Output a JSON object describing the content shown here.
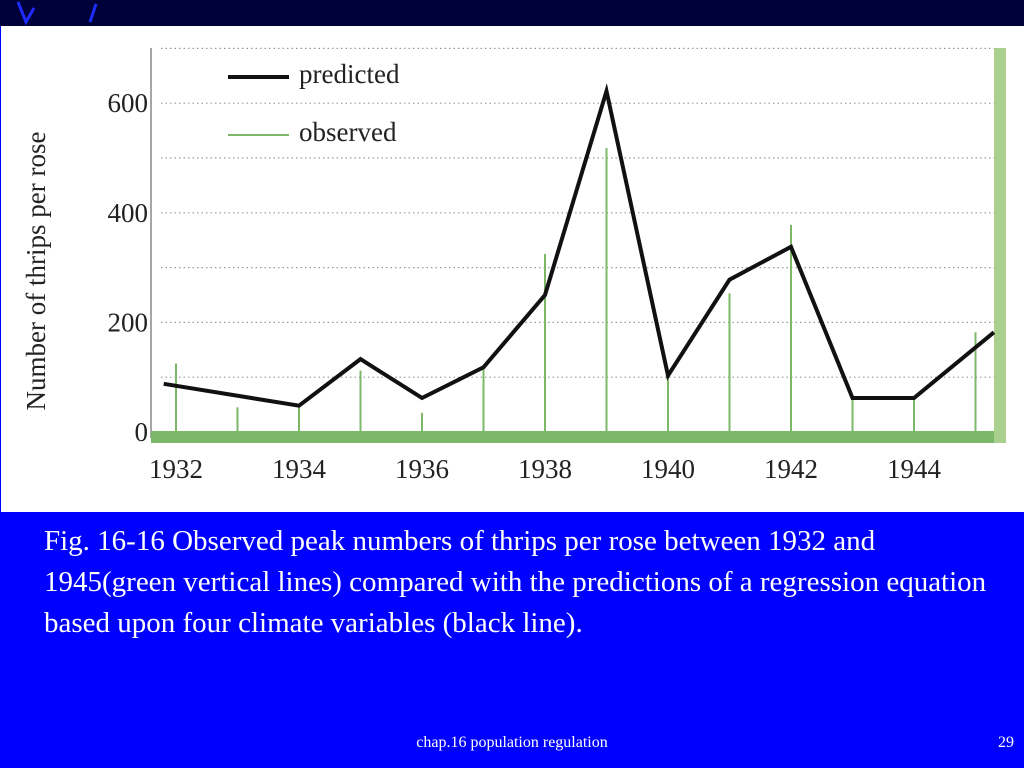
{
  "caption": "Fig. 16-16 Observed peak numbers of thrips per rose between 1932 and 1945(green vertical lines) compared with the predictions of a regression equation based upon four climate variables (black line).",
  "footer": {
    "title": "chap.16 population regulation",
    "slide_number": "29"
  },
  "colors": {
    "background": "#0000ff",
    "top_band": "#00003a",
    "predicted": "#111111",
    "observed": "#7cb867",
    "grid": "#999999"
  },
  "chart_data": {
    "type": "line",
    "title": "",
    "xlabel": "",
    "ylabel": "Number of thrips per rose",
    "xlim": [
      1931.8,
      1945.3
    ],
    "ylim": [
      0,
      700
    ],
    "x_ticks": [
      1932,
      1934,
      1936,
      1938,
      1940,
      1942,
      1944
    ],
    "y_ticks": [
      0,
      200,
      400,
      600
    ],
    "grid": "horizontal dotted",
    "legend": {
      "placement": "top-left",
      "entries": [
        "predicted",
        "observed"
      ]
    },
    "series": [
      {
        "name": "predicted",
        "style": "line",
        "x": [
          1931.8,
          1934,
          1935,
          1936,
          1937,
          1938,
          1939,
          1940,
          1941,
          1942,
          1943,
          1944,
          1945.3
        ],
        "values": [
          88,
          48,
          133,
          62,
          118,
          250,
          622,
          103,
          278,
          338,
          62,
          62,
          182
        ]
      },
      {
        "name": "observed",
        "style": "vertical-lines",
        "x": [
          1932,
          1933,
          1934,
          1935,
          1936,
          1937,
          1938,
          1939,
          1940,
          1941,
          1942,
          1943,
          1944,
          1945
        ],
        "values": [
          125,
          45,
          50,
          112,
          35,
          120,
          325,
          518,
          100,
          253,
          378,
          60,
          60,
          182
        ]
      }
    ]
  }
}
